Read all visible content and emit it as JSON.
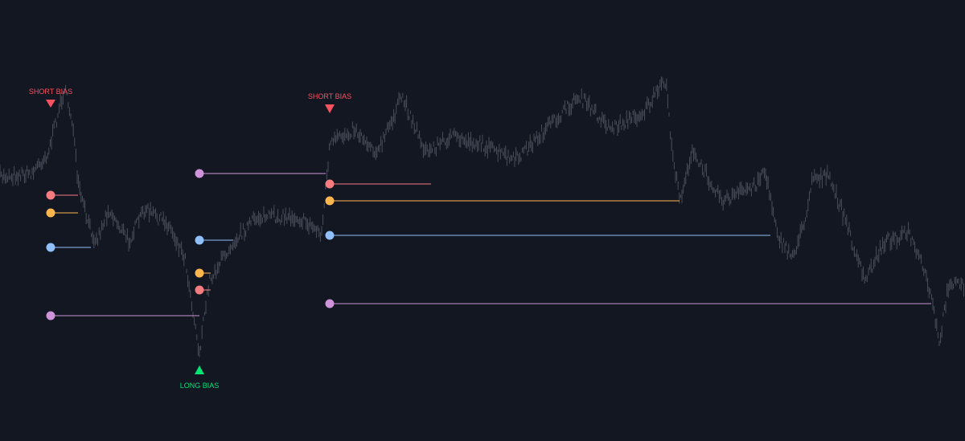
{
  "annotations": [
    {
      "label": "SHORT BIAS"
    },
    {
      "label": "SHORT BIAS"
    },
    {
      "label": "LONG BIAS"
    }
  ]
}
